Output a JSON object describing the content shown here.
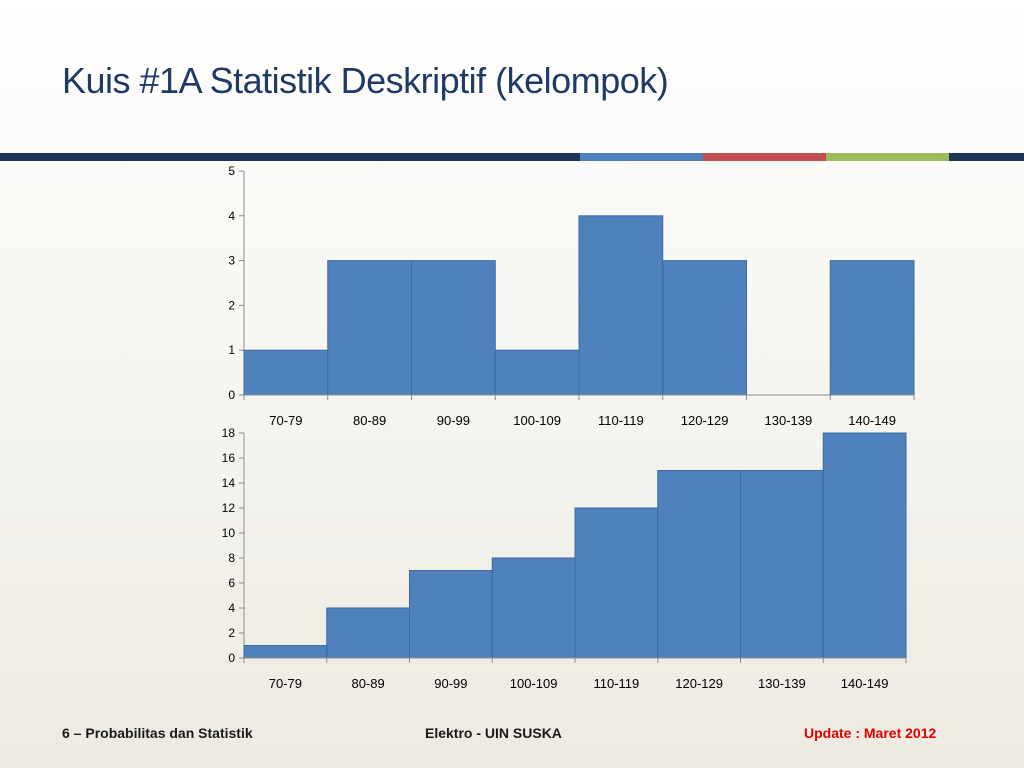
{
  "slide": {
    "title": "Kuis #1A Statistik Deskriptif (kelompok)",
    "rule_colors": [
      "#1d3557",
      "#4f81bd",
      "#c0504d",
      "#9bbb59",
      "#1d3557"
    ]
  },
  "footer": {
    "left": "6 – Probabilitas dan Statistik",
    "center": "Elektro  - UIN SUSKA",
    "right": "Update : Maret 2012",
    "left_color": "#1a1a1a",
    "center_color": "#1a1a1a",
    "right_color": "#e00000"
  },
  "chart_data": [
    {
      "type": "bar",
      "categories": [
        "70-79",
        "80-89",
        "90-99",
        "100-109",
        "110-119",
        "120-129",
        "130-139",
        "140-149"
      ],
      "values": [
        1,
        3,
        3,
        1,
        4,
        3,
        0,
        3
      ],
      "yticks": [
        0,
        1,
        2,
        3,
        4,
        5
      ],
      "ylim": [
        0,
        5
      ],
      "bar_color": "#4f81bd",
      "grid": false
    },
    {
      "type": "bar",
      "categories": [
        "70-79",
        "80-89",
        "90-99",
        "100-109",
        "110-119",
        "120-129",
        "130-139",
        "140-149"
      ],
      "values": [
        1,
        4,
        7,
        8,
        12,
        15,
        15,
        18
      ],
      "yticks": [
        0,
        2,
        4,
        6,
        8,
        10,
        12,
        14,
        16,
        18
      ],
      "ylim": [
        0,
        18
      ],
      "bar_color": "#4f81bd",
      "grid": false
    }
  ]
}
